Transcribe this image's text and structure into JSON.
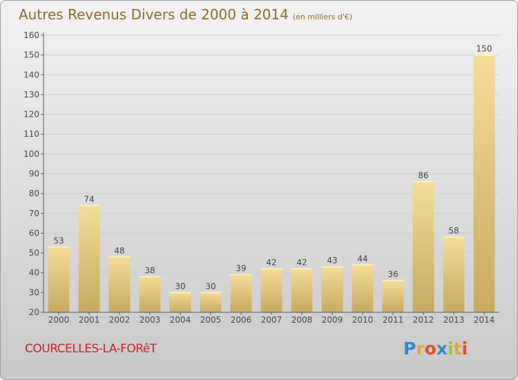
{
  "header": {
    "title": "Autres Revenus Divers de 2000 à 2014",
    "subtitle": "(en milliers d'€)"
  },
  "footer": {
    "commune": "COURCELLES-LA-FORêT",
    "logo_letters": [
      {
        "ch": "P",
        "color": "#3a86c8"
      },
      {
        "ch": "r",
        "color": "#e8a33a"
      },
      {
        "ch": "o",
        "color": "#d9502f"
      },
      {
        "ch": "x",
        "color": "#3a86c8"
      },
      {
        "ch": "i",
        "color": "#9bbf3a"
      },
      {
        "ch": "t",
        "color": "#e8a33a"
      },
      {
        "ch": "i",
        "color": "#d9502f"
      }
    ]
  },
  "colors": {
    "bar_top": "#f4dc98",
    "bar_bottom": "#c8aa60",
    "axis": "#555555",
    "grid": "#cfcfcf",
    "text": "#444444"
  },
  "chart_data": {
    "type": "bar",
    "title": "Autres Revenus Divers de 2000 à 2014",
    "subtitle": "(en milliers d'€)",
    "categories": [
      "2000",
      "2001",
      "2002",
      "2003",
      "2004",
      "2005",
      "2006",
      "2007",
      "2008",
      "2009",
      "2010",
      "2011",
      "2012",
      "2013",
      "2014"
    ],
    "values": [
      53,
      74,
      48,
      38,
      30,
      30,
      39,
      42,
      42,
      43,
      44,
      36,
      86,
      58,
      150
    ],
    "ylim": [
      20,
      160
    ],
    "yticks": [
      20,
      30,
      40,
      50,
      60,
      70,
      80,
      90,
      100,
      110,
      120,
      130,
      140,
      150,
      160
    ],
    "grid": true,
    "legend": "none"
  }
}
